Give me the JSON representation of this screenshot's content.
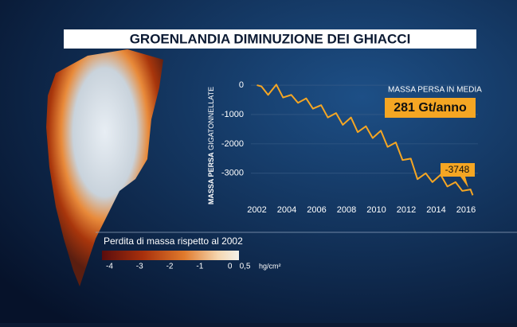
{
  "chart_data": {
    "type": "line",
    "title": "GROENLANDIA DIMINUZIONE DEI GHIACCI",
    "ylabel": [
      "MASSA PERSA",
      "GIGATONNELLATE"
    ],
    "x": [
      2002.0,
      2002.3,
      2002.75,
      2003.3,
      2003.75,
      2004.3,
      2004.75,
      2005.3,
      2005.75,
      2006.3,
      2006.75,
      2007.3,
      2007.75,
      2008.3,
      2008.75,
      2009.3,
      2009.75,
      2010.3,
      2010.75,
      2011.3,
      2011.75,
      2012.3,
      2012.75,
      2013.3,
      2013.75,
      2014.3,
      2014.75,
      2015.3,
      2015.75,
      2016.3,
      2016.45
    ],
    "series": [
      {
        "color": "#f5a623",
        "values": [
          0,
          -40,
          -330,
          20,
          -420,
          -330,
          -600,
          -450,
          -800,
          -680,
          -1100,
          -950,
          -1350,
          -1100,
          -1600,
          -1400,
          -1800,
          -1550,
          -2100,
          -1950,
          -2550,
          -2500,
          -3200,
          -3000,
          -3300,
          -3050,
          -3450,
          -3300,
          -3600,
          -3550,
          -3748
        ]
      }
    ],
    "xlim": [
      2001.6,
      2016.8
    ],
    "ylim": [
      -3900,
      300
    ],
    "xticks": [
      2002,
      2004,
      2006,
      2008,
      2010,
      2012,
      2014,
      2016
    ],
    "yticks": [
      0,
      -1000,
      -2000,
      -3000
    ],
    "grid": true,
    "annotations": [
      "MASSA PERSA IN MEDIA",
      "281 Gt/anno",
      "-3748"
    ],
    "colorbar": {
      "label": "Perdita di massa rispetto al 2002",
      "unit": "hg/cm²",
      "lim": [
        -4.25,
        0.3
      ],
      "ticks": [
        -4,
        -3,
        -2,
        -1,
        0,
        {
          "value": 0.5,
          "label": "0,5"
        }
      ]
    }
  }
}
